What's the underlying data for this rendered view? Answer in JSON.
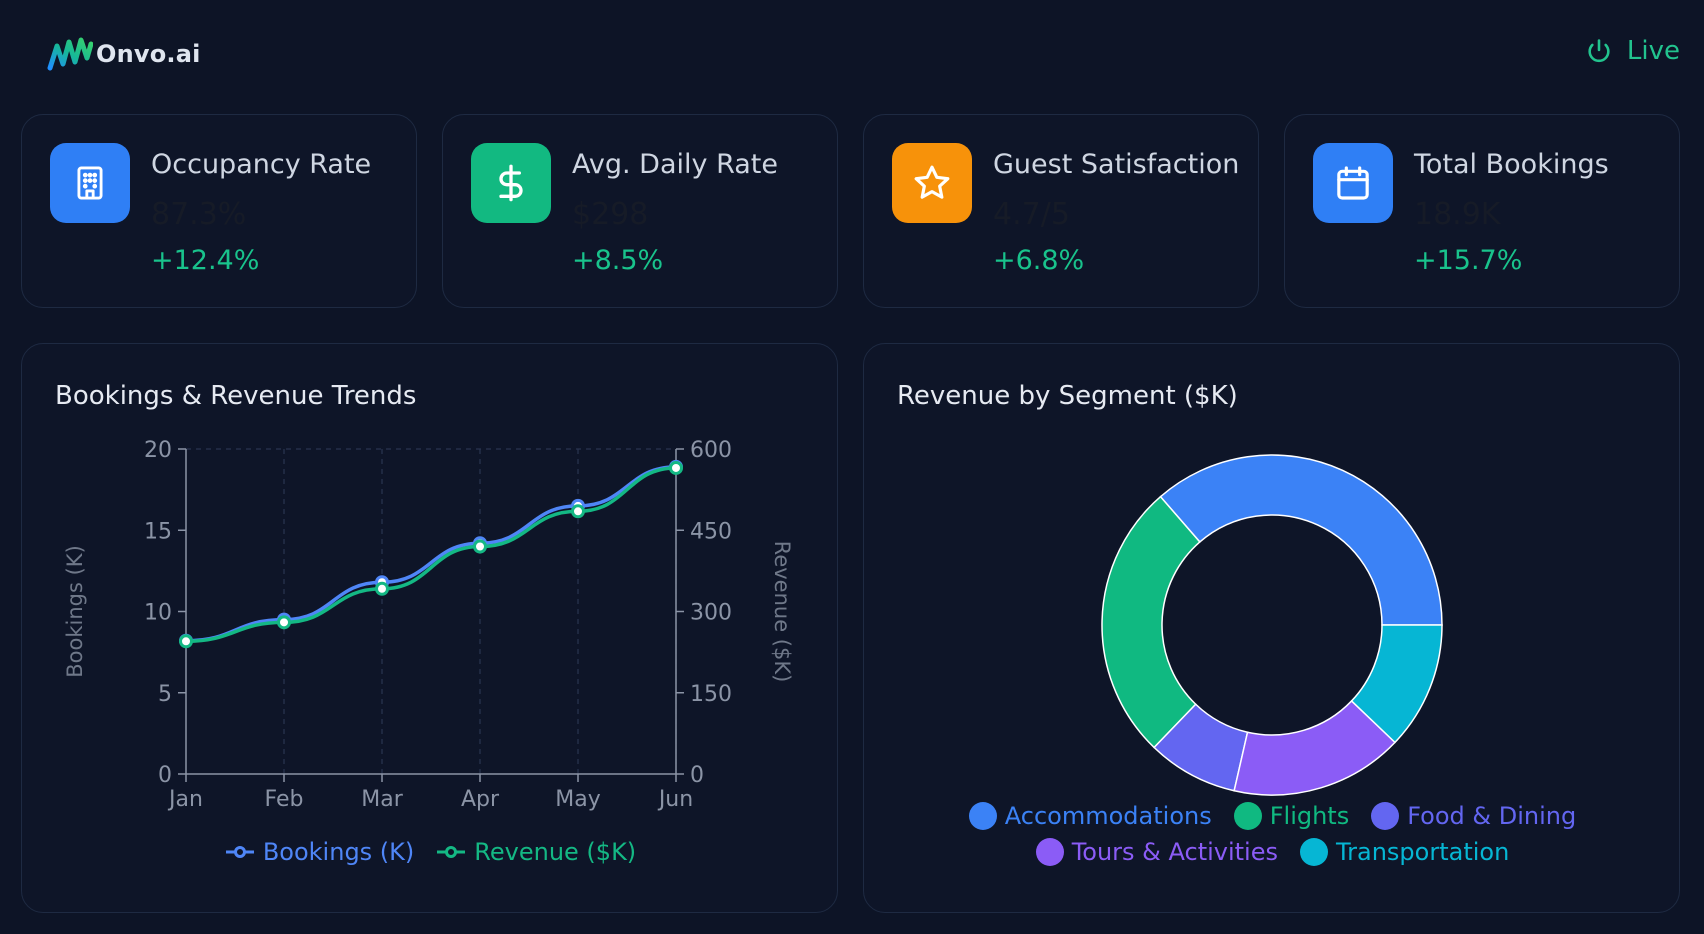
{
  "header": {
    "brand": "Onvo.ai",
    "live_label": "Live",
    "accent": "#22c38e"
  },
  "kpis": [
    {
      "label": "Occupancy Rate",
      "value": "87.3%",
      "delta": "+12.4%",
      "icon": "building-icon",
      "color": "#2f7ff5"
    },
    {
      "label": "Avg. Daily Rate",
      "value": "$298",
      "delta": "+8.5%",
      "icon": "dollar-icon",
      "color": "#12b981"
    },
    {
      "label": "Guest Satisfaction",
      "value": "4.7/5",
      "delta": "+6.8%",
      "icon": "star-icon",
      "color": "#f7920a"
    },
    {
      "label": "Total Bookings",
      "value": "18.9K",
      "delta": "+15.7%",
      "icon": "calendar-icon",
      "color": "#2f7ff5"
    }
  ],
  "trend_panel": {
    "title": "Bookings & Revenue Trends"
  },
  "segment_panel": {
    "title": "Revenue by Segment ($K)"
  },
  "chart_data": [
    {
      "type": "line",
      "title": "Bookings & Revenue Trends",
      "categories": [
        "Jan",
        "Feb",
        "Mar",
        "Apr",
        "May",
        "Jun"
      ],
      "series": [
        {
          "name": "Bookings (K)",
          "axis": "left",
          "color": "#4f86f7",
          "values": [
            8.2,
            9.5,
            11.8,
            14.2,
            16.5,
            18.9
          ]
        },
        {
          "name": "Revenue ($K)",
          "axis": "right",
          "color": "#14b884",
          "values": [
            245,
            280,
            342,
            420,
            485,
            565
          ]
        }
      ],
      "ylabel": "Bookings (K)",
      "y2label": "Revenue ($K)",
      "ylim": [
        0,
        20
      ],
      "y2lim": [
        0,
        600
      ],
      "yticks": [
        0,
        5,
        10,
        15,
        20
      ],
      "y2ticks": [
        0,
        150,
        300,
        450,
        600
      ],
      "grid": true,
      "legend": "bottom"
    },
    {
      "type": "pie",
      "title": "Revenue by Segment ($K)",
      "categories": [
        "Accommodations",
        "Flights",
        "Food & Dining",
        "Tours & Activities",
        "Transportation"
      ],
      "values": [
        1350,
        980,
        320,
        610,
        450
      ],
      "colors": [
        "#3b82f6",
        "#10b981",
        "#6366f1",
        "#8b5cf6",
        "#06b6d4"
      ],
      "legend": "bottom"
    }
  ]
}
